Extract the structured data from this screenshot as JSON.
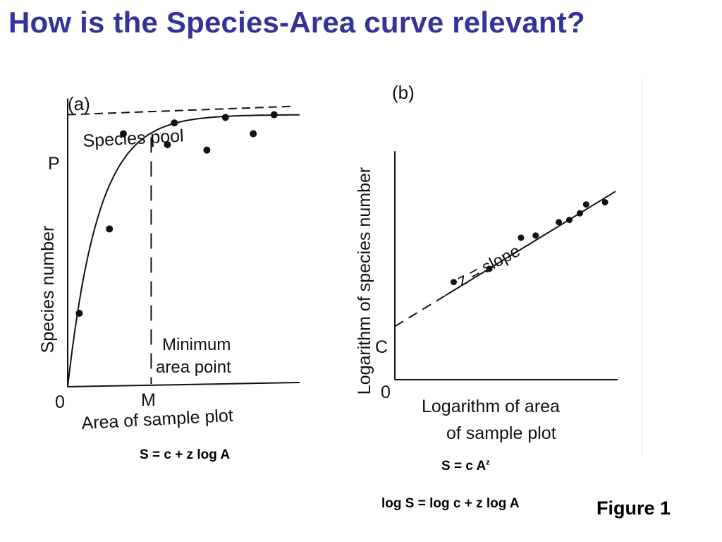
{
  "title": "How is the Species-Area curve relevant?",
  "colors": {
    "title": "#333399",
    "ink": "#111111"
  },
  "chart_data": [
    {
      "type": "scatter",
      "panel_label": "(a)",
      "ylabel": "Species number",
      "xlabel": "Area of sample plot",
      "x_origin_label": "0",
      "x_marker_label": "M",
      "y_marker_label": "P",
      "asymptote_label": "Species pool",
      "annotation": "Minimum area point",
      "points": [
        {
          "x": 0.5,
          "y": 27
        },
        {
          "x": 1.8,
          "y": 58
        },
        {
          "x": 2.4,
          "y": 93
        },
        {
          "x": 4.3,
          "y": 89
        },
        {
          "x": 4.6,
          "y": 97
        },
        {
          "x": 6.0,
          "y": 87
        },
        {
          "x": 6.8,
          "y": 99
        },
        {
          "x": 8.0,
          "y": 93
        },
        {
          "x": 8.9,
          "y": 100
        }
      ],
      "curve": {
        "asymptote": 100,
        "k": 0.75
      },
      "M": 3.6,
      "xlim": [
        0,
        10
      ],
      "ylim": [
        0,
        110
      ],
      "formula": "S = c + z log A"
    },
    {
      "type": "scatter",
      "panel_label": "(b)",
      "ylabel": "Logarithm of species number",
      "xlabel_lines": [
        "Logarithm of area",
        "of sample plot"
      ],
      "x_origin_label": "0",
      "intercept_label": "C",
      "line_label": "z = slope",
      "points": [
        {
          "x": 2.8,
          "y": 4.4
        },
        {
          "x": 4.5,
          "y": 5.0
        },
        {
          "x": 6.0,
          "y": 6.4
        },
        {
          "x": 6.7,
          "y": 6.5
        },
        {
          "x": 7.8,
          "y": 7.1
        },
        {
          "x": 8.3,
          "y": 7.2
        },
        {
          "x": 8.8,
          "y": 7.5
        },
        {
          "x": 9.1,
          "y": 7.9
        },
        {
          "x": 10.0,
          "y": 8.0
        }
      ],
      "line": {
        "intercept": 2.4,
        "slope": 0.58,
        "dashed_to": 2.4
      },
      "xlim": [
        0,
        10.8
      ],
      "ylim": [
        0,
        10.5
      ],
      "formulas": {
        "power_base": "S = c A",
        "power_exp": "z",
        "log_form": "log S = log c + z log A"
      }
    }
  ],
  "figure_label": "Figure 1"
}
